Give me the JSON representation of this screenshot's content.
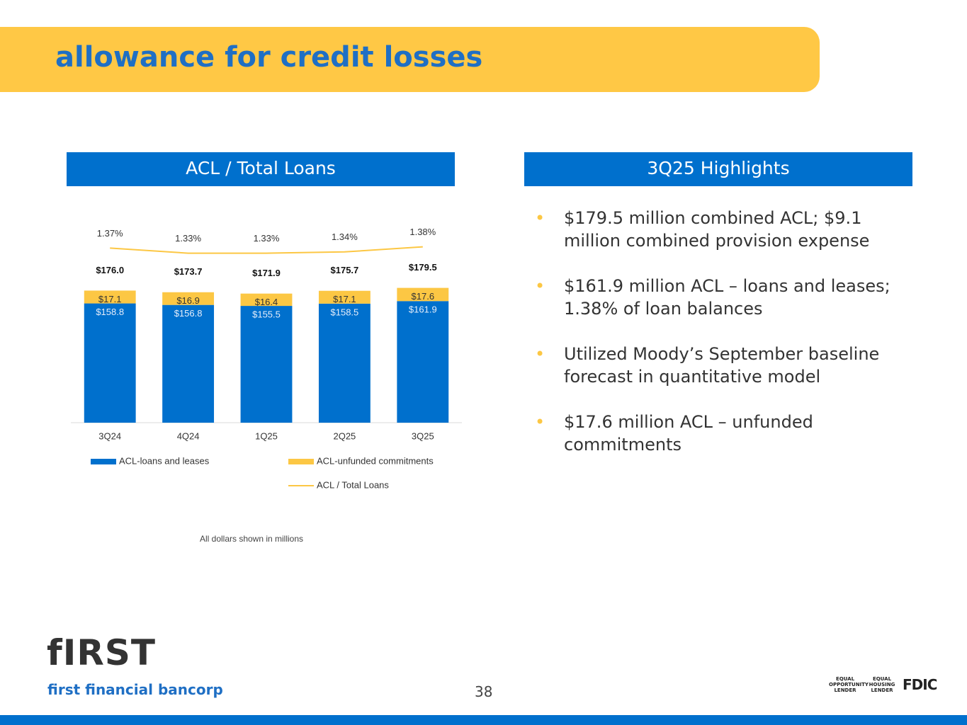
{
  "header": {
    "title": "allowance for credit losses"
  },
  "chart_data": {
    "type": "bar",
    "stacked": true,
    "title": "ACL / Total Loans",
    "categories": [
      "3Q24",
      "4Q24",
      "1Q25",
      "2Q25",
      "3Q25"
    ],
    "series": [
      {
        "name": "ACL-loans and leases",
        "color": "#0070cd",
        "values": [
          158.8,
          156.8,
          155.5,
          158.5,
          161.9
        ],
        "value_labels": [
          "$158.8",
          "$156.8",
          "$155.5",
          "$158.5",
          "$161.9"
        ]
      },
      {
        "name": "ACL-unfunded commitments",
        "color": "#fcc744",
        "values": [
          17.1,
          16.9,
          16.4,
          17.1,
          17.6
        ],
        "value_labels": [
          "$17.1",
          "$16.9",
          "$16.4",
          "$17.1",
          "$17.6"
        ]
      },
      {
        "name": "ACL / Total Loans",
        "type": "line",
        "axis": "y2",
        "color": "#fcc744",
        "values": [
          1.37,
          1.33,
          1.33,
          1.34,
          1.38
        ],
        "value_labels": [
          "1.37%",
          "1.33%",
          "1.33%",
          "1.34%",
          "1.38%"
        ]
      }
    ],
    "totals": {
      "values": [
        176.0,
        173.7,
        171.9,
        175.7,
        179.5
      ],
      "value_labels": [
        "$176.0",
        "$173.7",
        "$171.9",
        "$175.7",
        "$179.5"
      ]
    },
    "ylim": [
      0,
      280
    ],
    "y2lim": [
      0,
      1.65
    ],
    "note": "All dollars shown in millions"
  },
  "highlights": {
    "title": "3Q25 Highlights",
    "items": [
      "$179.5 million combined ACL; $9.1 million combined provision expense",
      "$161.9 million ACL – loans and leases; 1.38% of loan balances",
      "Utilized Moody’s September baseline forecast in quantitative model",
      "$17.6 million ACL – unfunded commitments"
    ]
  },
  "footer": {
    "logo": "fIRST",
    "company": "first financial bancorp",
    "page": "38",
    "badges": [
      "EQUAL OPPORTUNITY LENDER",
      "EQUAL HOUSING LENDER",
      "FDIC"
    ]
  }
}
